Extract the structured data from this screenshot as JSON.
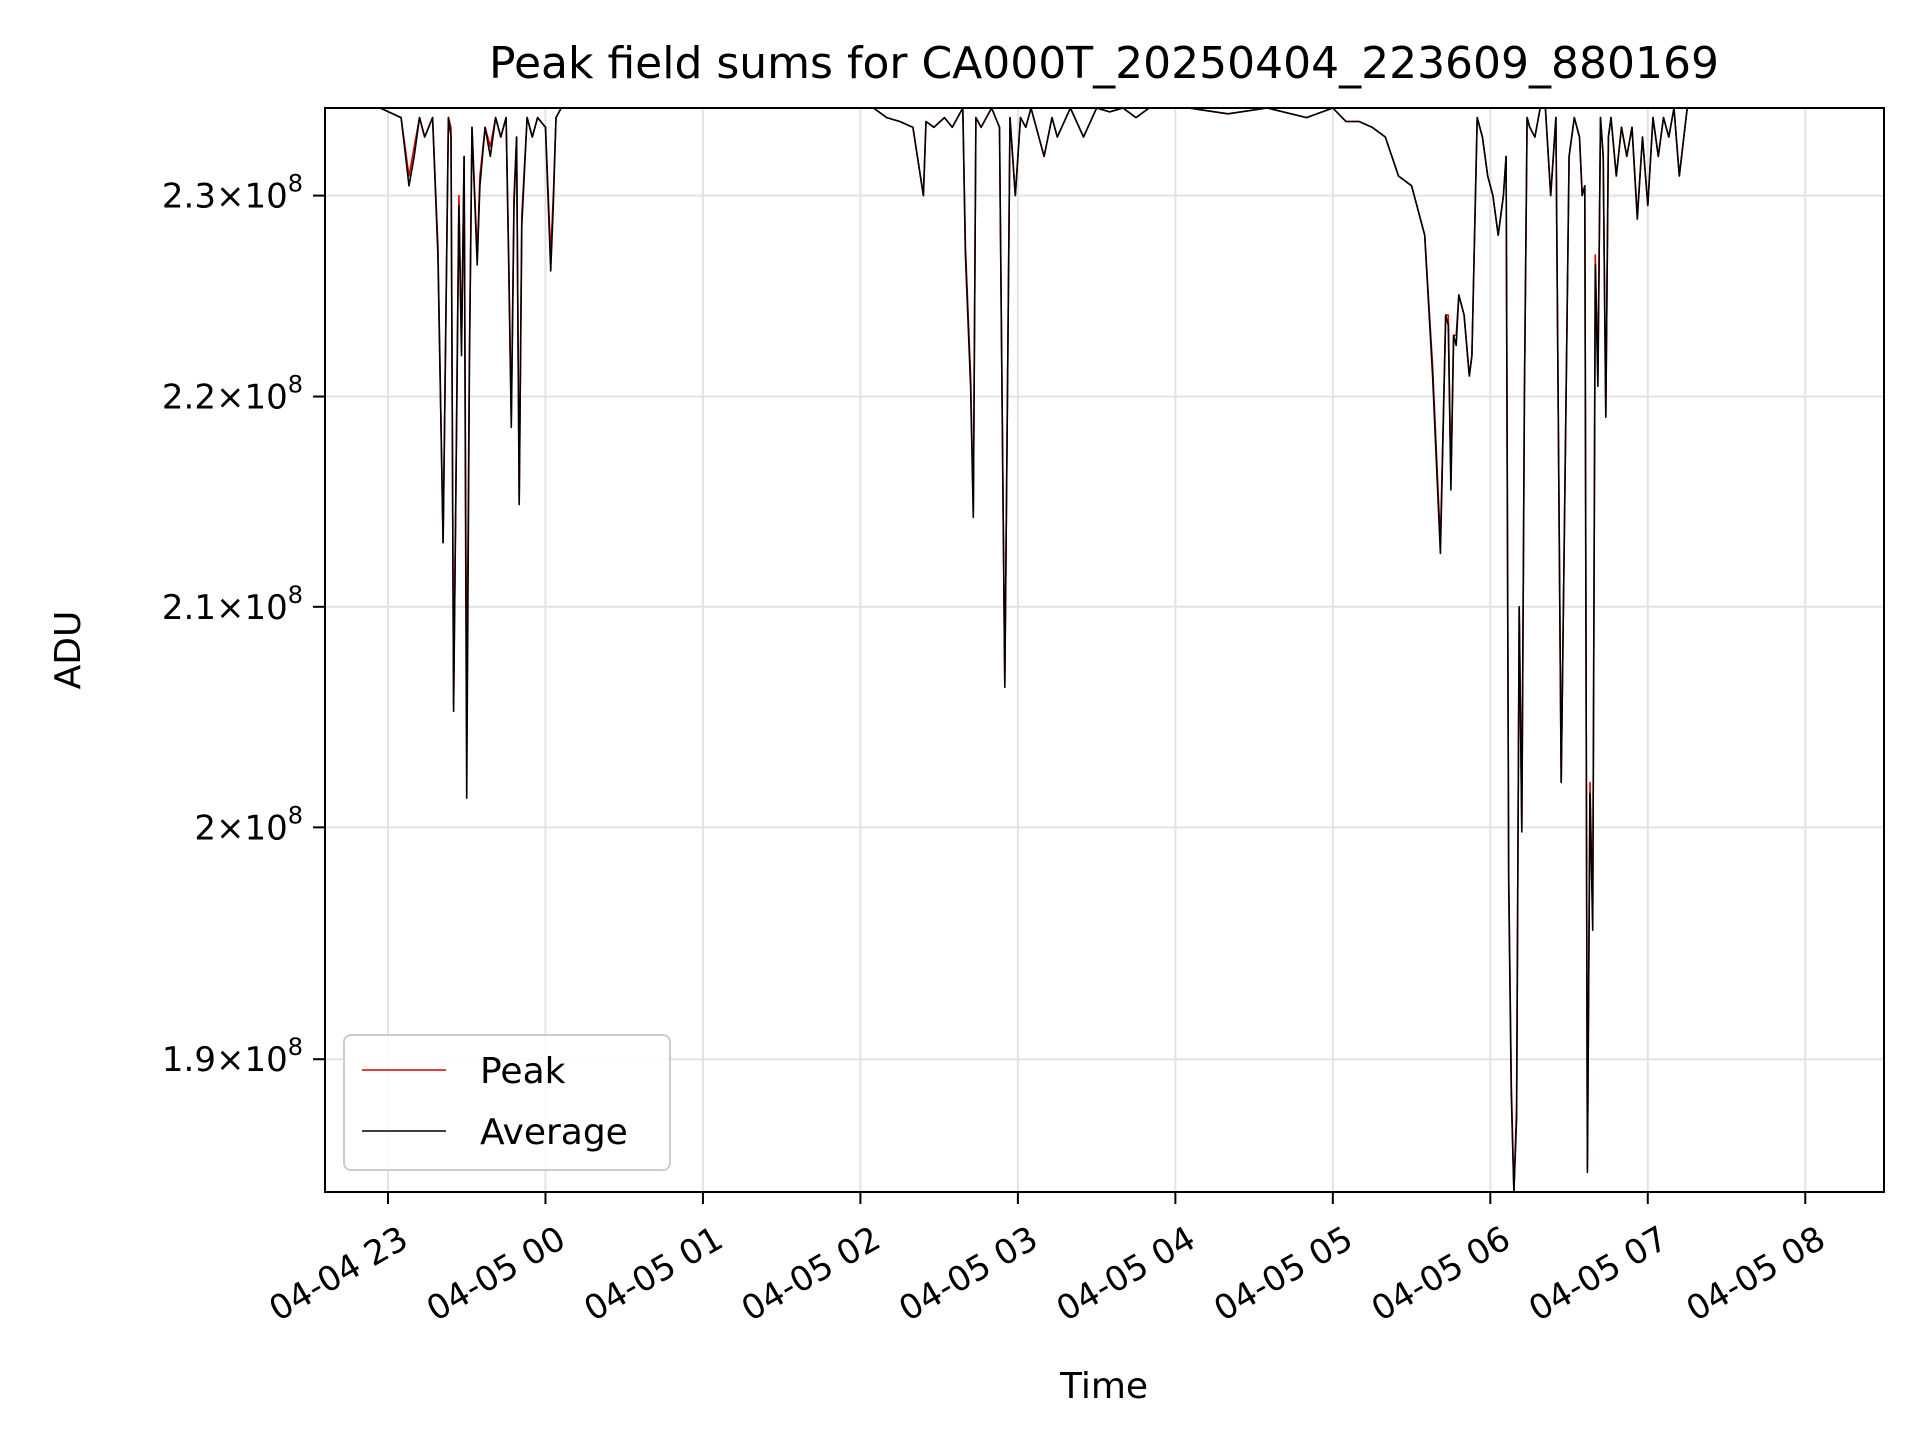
{
  "chart_data": {
    "type": "line",
    "title": "Peak field sums for CA000T_20250404_223609_880169",
    "xlabel": "Time",
    "ylabel": "ADU",
    "y_scale": "log",
    "xlim": [
      "2025-04-04 22:36",
      "2025-04-05 08:30"
    ],
    "ylim": [
      184500000.0,
      234500000.0
    ],
    "x_ticks": [
      {
        "t": "2025-04-04 23:00",
        "label": "04-04 23"
      },
      {
        "t": "2025-04-05 00:00",
        "label": "04-05 00"
      },
      {
        "t": "2025-04-05 01:00",
        "label": "04-05 01"
      },
      {
        "t": "2025-04-05 02:00",
        "label": "04-05 02"
      },
      {
        "t": "2025-04-05 03:00",
        "label": "04-05 03"
      },
      {
        "t": "2025-04-05 04:00",
        "label": "04-05 04"
      },
      {
        "t": "2025-04-05 05:00",
        "label": "04-05 05"
      },
      {
        "t": "2025-04-05 06:00",
        "label": "04-05 06"
      },
      {
        "t": "2025-04-05 07:00",
        "label": "04-05 07"
      },
      {
        "t": "2025-04-05 08:00",
        "label": "04-05 08"
      }
    ],
    "y_ticks": [
      {
        "v": 190000000,
        "mant": "1.9",
        "exp": "8"
      },
      {
        "v": 200000000,
        "mant": "2",
        "exp": "8"
      },
      {
        "v": 210000000,
        "mant": "2.1",
        "exp": "8"
      },
      {
        "v": 220000000,
        "mant": "2.2",
        "exp": "8"
      },
      {
        "v": 230000000,
        "mant": "2.3",
        "exp": "8"
      }
    ],
    "grid": true,
    "legend": {
      "position": "lower-left",
      "entries": [
        "Peak",
        "Average"
      ]
    },
    "series": [
      {
        "name": "Peak",
        "color": "#e00000",
        "t": [
          "2025-04-04 22:45",
          "2025-04-04 22:57",
          "2025-04-04 23:05",
          "2025-04-04 23:08",
          "2025-04-04 23:10",
          "2025-04-04 23:12",
          "2025-04-04 23:14",
          "2025-04-04 23:17",
          "2025-04-04 23:19",
          "2025-04-04 23:21",
          "2025-04-04 23:23",
          "2025-04-04 23:24",
          "2025-04-04 23:25",
          "2025-04-04 23:27",
          "2025-04-04 23:28",
          "2025-04-04 23:29",
          "2025-04-04 23:30",
          "2025-04-04 23:31",
          "2025-04-04 23:32",
          "2025-04-04 23:34",
          "2025-04-04 23:35",
          "2025-04-04 23:37",
          "2025-04-04 23:39",
          "2025-04-04 23:41",
          "2025-04-04 23:43",
          "2025-04-04 23:45",
          "2025-04-04 23:46",
          "2025-04-04 23:47",
          "2025-04-04 23:48",
          "2025-04-04 23:49",
          "2025-04-04 23:50",
          "2025-04-04 23:51",
          "2025-04-04 23:53",
          "2025-04-04 23:55",
          "2025-04-04 23:57",
          "2025-04-05 00:00",
          "2025-04-05 00:02",
          "2025-04-05 00:03",
          "2025-04-05 00:04",
          "2025-04-05 00:06",
          "2025-04-05 00:10",
          "2025-04-05 00:30",
          "2025-04-05 01:30",
          "2025-04-05 02:05",
          "2025-04-05 02:10",
          "2025-04-05 02:15",
          "2025-04-05 02:20",
          "2025-04-05 02:24",
          "2025-04-05 02:25",
          "2025-04-05 02:28",
          "2025-04-05 02:32",
          "2025-04-05 02:35",
          "2025-04-05 02:39",
          "2025-04-05 02:40",
          "2025-04-05 02:42",
          "2025-04-05 02:43",
          "2025-04-05 02:44",
          "2025-04-05 02:46",
          "2025-04-05 02:50",
          "2025-04-05 02:53",
          "2025-04-05 02:55",
          "2025-04-05 02:57",
          "2025-04-05 02:59",
          "2025-04-05 03:01",
          "2025-04-05 03:03",
          "2025-04-05 03:05",
          "2025-04-05 03:10",
          "2025-04-05 03:13",
          "2025-04-05 03:15",
          "2025-04-05 03:20",
          "2025-04-05 03:25",
          "2025-04-05 03:30",
          "2025-04-05 03:35",
          "2025-04-05 03:40",
          "2025-04-05 03:45",
          "2025-04-05 03:50",
          "2025-04-05 03:55",
          "2025-04-05 04:05",
          "2025-04-05 04:20",
          "2025-04-05 04:35",
          "2025-04-05 04:50",
          "2025-04-05 05:00",
          "2025-04-05 05:05",
          "2025-04-05 05:10",
          "2025-04-05 05:15",
          "2025-04-05 05:20",
          "2025-04-05 05:25",
          "2025-04-05 05:30",
          "2025-04-05 05:35",
          "2025-04-05 05:38",
          "2025-04-05 05:41",
          "2025-04-05 05:43",
          "2025-04-05 05:44",
          "2025-04-05 05:45",
          "2025-04-05 05:46",
          "2025-04-05 05:47",
          "2025-04-05 05:48",
          "2025-04-05 05:50",
          "2025-04-05 05:52",
          "2025-04-05 05:53",
          "2025-04-05 05:55",
          "2025-04-05 05:57",
          "2025-04-05 05:59",
          "2025-04-05 06:01",
          "2025-04-05 06:03",
          "2025-04-05 06:05",
          "2025-04-05 06:06",
          "2025-04-05 06:07",
          "2025-04-05 06:08",
          "2025-04-05 06:09",
          "2025-04-05 06:10",
          "2025-04-05 06:11",
          "2025-04-05 06:12",
          "2025-04-05 06:13",
          "2025-04-05 06:14",
          "2025-04-05 06:15",
          "2025-04-05 06:17",
          "2025-04-05 06:19",
          "2025-04-05 06:21",
          "2025-04-05 06:23",
          "2025-04-05 06:25",
          "2025-04-05 06:27",
          "2025-04-05 06:30",
          "2025-04-05 06:32",
          "2025-04-05 06:34",
          "2025-04-05 06:35",
          "2025-04-05 06:36",
          "2025-04-05 06:37",
          "2025-04-05 06:38",
          "2025-04-05 06:39",
          "2025-04-05 06:40",
          "2025-04-05 06:41",
          "2025-04-05 06:42",
          "2025-04-05 06:43",
          "2025-04-05 06:44",
          "2025-04-05 06:45",
          "2025-04-05 06:46",
          "2025-04-05 06:48",
          "2025-04-05 06:50",
          "2025-04-05 06:52",
          "2025-04-05 06:54",
          "2025-04-05 06:56",
          "2025-04-05 06:58",
          "2025-04-05 07:00",
          "2025-04-05 07:02",
          "2025-04-05 07:04",
          "2025-04-05 07:06",
          "2025-04-05 07:08",
          "2025-04-05 07:10",
          "2025-04-05 07:12",
          "2025-04-05 07:15",
          "2025-04-05 07:20",
          "2025-04-05 07:30",
          "2025-04-05 07:40"
        ],
        "v": [
          234500000.0,
          234500000.0,
          234000000.0,
          231000000.0,
          232500000.0,
          234000000.0,
          233000000.0,
          234000000.0,
          227500000.0,
          213000000.0,
          234000000.0,
          233500000.0,
          205500000.0,
          230000000.0,
          222500000.0,
          232000000.0,
          205000000.0,
          222000000.0,
          233500000.0,
          227000000.0,
          231000000.0,
          233500000.0,
          232500000.0,
          234000000.0,
          233000000.0,
          234000000.0,
          227000000.0,
          219000000.0,
          230000000.0,
          233000000.0,
          215000000.0,
          229000000.0,
          234000000.0,
          233000000.0,
          234000000.0,
          233500000.0,
          227000000.0,
          230000000.0,
          234000000.0,
          234500000.0,
          234500000.0,
          234500000.0,
          234500000.0,
          234500000.0,
          234000000.0,
          233800000.0,
          233500000.0,
          230000000.0,
          233800000.0,
          233500000.0,
          234000000.0,
          233500000.0,
          234500000.0,
          227500000.0,
          221000000.0,
          214500000.0,
          234000000.0,
          233500000.0,
          234500000.0,
          233500000.0,
          206500000.0,
          234000000.0,
          230000000.0,
          234000000.0,
          233500000.0,
          234500000.0,
          232000000.0,
          234000000.0,
          233000000.0,
          234500000.0,
          233000000.0,
          234500000.0,
          234300000.0,
          234500000.0,
          234000000.0,
          234500000.0,
          234500000.0,
          234500000.0,
          234200000.0,
          234500000.0,
          234000000.0,
          234500000.0,
          233800000.0,
          233800000.0,
          233500000.0,
          233000000.0,
          231000000.0,
          230500000.0,
          228000000.0,
          221500000.0,
          213000000.0,
          224000000.0,
          224000000.0,
          216000000.0,
          223000000.0,
          223000000.0,
          225000000.0,
          224000000.0,
          221000000.0,
          222000000.0,
          234000000.0,
          233000000.0,
          231000000.0,
          230000000.0,
          228000000.0,
          230000000.0,
          232000000.0,
          198000000.0,
          189000000.0,
          184500000.0,
          188000000.0,
          210000000.0,
          200000000.0,
          220000000.0,
          234000000.0,
          233500000.0,
          233000000.0,
          234500000.0,
          234500000.0,
          230000000.0,
          234000000.0,
          202000000.0,
          232000000.0,
          234000000.0,
          233000000.0,
          230000000.0,
          230500000.0,
          185500000.0,
          202000000.0,
          196000000.0,
          227000000.0,
          221000000.0,
          234000000.0,
          232000000.0,
          219000000.0,
          233000000.0,
          234000000.0,
          231000000.0,
          233500000.0,
          232000000.0,
          233500000.0,
          229000000.0,
          233000000.0,
          229500000.0,
          234000000.0,
          232000000.0,
          234000000.0,
          233000000.0,
          234500000.0,
          231000000.0,
          234500000.0,
          234500000.0,
          234500000.0
        ]
      },
      {
        "name": "Average",
        "color": "#000000",
        "t": [
          "2025-04-04 22:45",
          "2025-04-04 22:57",
          "2025-04-04 23:05",
          "2025-04-04 23:08",
          "2025-04-04 23:10",
          "2025-04-04 23:12",
          "2025-04-04 23:14",
          "2025-04-04 23:17",
          "2025-04-04 23:19",
          "2025-04-04 23:21",
          "2025-04-04 23:23",
          "2025-04-04 23:24",
          "2025-04-04 23:25",
          "2025-04-04 23:27",
          "2025-04-04 23:28",
          "2025-04-04 23:29",
          "2025-04-04 23:30",
          "2025-04-04 23:31",
          "2025-04-04 23:32",
          "2025-04-04 23:34",
          "2025-04-04 23:35",
          "2025-04-04 23:37",
          "2025-04-04 23:39",
          "2025-04-04 23:41",
          "2025-04-04 23:43",
          "2025-04-04 23:45",
          "2025-04-04 23:46",
          "2025-04-04 23:47",
          "2025-04-04 23:48",
          "2025-04-04 23:49",
          "2025-04-04 23:50",
          "2025-04-04 23:51",
          "2025-04-04 23:53",
          "2025-04-04 23:55",
          "2025-04-04 23:57",
          "2025-04-05 00:00",
          "2025-04-05 00:02",
          "2025-04-05 00:03",
          "2025-04-05 00:04",
          "2025-04-05 00:06",
          "2025-04-05 00:10",
          "2025-04-05 00:30",
          "2025-04-05 01:30",
          "2025-04-05 02:05",
          "2025-04-05 02:10",
          "2025-04-05 02:15",
          "2025-04-05 02:20",
          "2025-04-05 02:24",
          "2025-04-05 02:25",
          "2025-04-05 02:28",
          "2025-04-05 02:32",
          "2025-04-05 02:35",
          "2025-04-05 02:39",
          "2025-04-05 02:40",
          "2025-04-05 02:42",
          "2025-04-05 02:43",
          "2025-04-05 02:44",
          "2025-04-05 02:46",
          "2025-04-05 02:50",
          "2025-04-05 02:53",
          "2025-04-05 02:55",
          "2025-04-05 02:57",
          "2025-04-05 02:59",
          "2025-04-05 03:01",
          "2025-04-05 03:03",
          "2025-04-05 03:05",
          "2025-04-05 03:10",
          "2025-04-05 03:13",
          "2025-04-05 03:15",
          "2025-04-05 03:20",
          "2025-04-05 03:25",
          "2025-04-05 03:30",
          "2025-04-05 03:35",
          "2025-04-05 03:40",
          "2025-04-05 03:45",
          "2025-04-05 03:50",
          "2025-04-05 03:55",
          "2025-04-05 04:05",
          "2025-04-05 04:20",
          "2025-04-05 04:35",
          "2025-04-05 04:50",
          "2025-04-05 05:00",
          "2025-04-05 05:05",
          "2025-04-05 05:10",
          "2025-04-05 05:15",
          "2025-04-05 05:20",
          "2025-04-05 05:25",
          "2025-04-05 05:30",
          "2025-04-05 05:35",
          "2025-04-05 05:38",
          "2025-04-05 05:41",
          "2025-04-05 05:43",
          "2025-04-05 05:44",
          "2025-04-05 05:45",
          "2025-04-05 05:46",
          "2025-04-05 05:47",
          "2025-04-05 05:48",
          "2025-04-05 05:50",
          "2025-04-05 05:52",
          "2025-04-05 05:53",
          "2025-04-05 05:55",
          "2025-04-05 05:57",
          "2025-04-05 05:59",
          "2025-04-05 06:01",
          "2025-04-05 06:03",
          "2025-04-05 06:05",
          "2025-04-05 06:06",
          "2025-04-05 06:07",
          "2025-04-05 06:08",
          "2025-04-05 06:09",
          "2025-04-05 06:10",
          "2025-04-05 06:11",
          "2025-04-05 06:12",
          "2025-04-05 06:13",
          "2025-04-05 06:14",
          "2025-04-05 06:15",
          "2025-04-05 06:17",
          "2025-04-05 06:19",
          "2025-04-05 06:21",
          "2025-04-05 06:23",
          "2025-04-05 06:25",
          "2025-04-05 06:27",
          "2025-04-05 06:30",
          "2025-04-05 06:32",
          "2025-04-05 06:34",
          "2025-04-05 06:35",
          "2025-04-05 06:36",
          "2025-04-05 06:37",
          "2025-04-05 06:38",
          "2025-04-05 06:39",
          "2025-04-05 06:40",
          "2025-04-05 06:41",
          "2025-04-05 06:42",
          "2025-04-05 06:43",
          "2025-04-05 06:44",
          "2025-04-05 06:45",
          "2025-04-05 06:46",
          "2025-04-05 06:48",
          "2025-04-05 06:50",
          "2025-04-05 06:52",
          "2025-04-05 06:54",
          "2025-04-05 06:56",
          "2025-04-05 06:58",
          "2025-04-05 07:00",
          "2025-04-05 07:02",
          "2025-04-05 07:04",
          "2025-04-05 07:06",
          "2025-04-05 07:08",
          "2025-04-05 07:10",
          "2025-04-05 07:12",
          "2025-04-05 07:15",
          "2025-04-05 07:20",
          "2025-04-05 07:30",
          "2025-04-05 07:40"
        ],
        "v": [
          234500000.0,
          234500000.0,
          234000000.0,
          230500000.0,
          232000000.0,
          234000000.0,
          233000000.0,
          234000000.0,
          227000000.0,
          213000000.0,
          234000000.0,
          233000000.0,
          205200000.0,
          229500000.0,
          222000000.0,
          232000000.0,
          201300000.0,
          221500000.0,
          233500000.0,
          226500000.0,
          230500000.0,
          233500000.0,
          232000000.0,
          234000000.0,
          233000000.0,
          234000000.0,
          226500000.0,
          218500000.0,
          229500000.0,
          233000000.0,
          214800000.0,
          228500000.0,
          234000000.0,
          233000000.0,
          234000000.0,
          233500000.0,
          226200000.0,
          229500000.0,
          234000000.0,
          234500000.0,
          234500000.0,
          234500000.0,
          234500000.0,
          234500000.0,
          234000000.0,
          233800000.0,
          233500000.0,
          230000000.0,
          233800000.0,
          233500000.0,
          234000000.0,
          233500000.0,
          234500000.0,
          227000000.0,
          220500000.0,
          214200000.0,
          234000000.0,
          233500000.0,
          234500000.0,
          233500000.0,
          206300000.0,
          234000000.0,
          230000000.0,
          234000000.0,
          233500000.0,
          234500000.0,
          232000000.0,
          234000000.0,
          233000000.0,
          234500000.0,
          233000000.0,
          234500000.0,
          234300000.0,
          234500000.0,
          234000000.0,
          234500000.0,
          234500000.0,
          234500000.0,
          234200000.0,
          234500000.0,
          234000000.0,
          234500000.0,
          233800000.0,
          233800000.0,
          233500000.0,
          233000000.0,
          231000000.0,
          230500000.0,
          228000000.0,
          221000000.0,
          212500000.0,
          224000000.0,
          223500000.0,
          215500000.0,
          223000000.0,
          222500000.0,
          225000000.0,
          224000000.0,
          221000000.0,
          222000000.0,
          234000000.0,
          233000000.0,
          231000000.0,
          230000000.0,
          228000000.0,
          230000000.0,
          232000000.0,
          197500000.0,
          188500000.0,
          184500000.0,
          187500000.0,
          210000000.0,
          199800000.0,
          220000000.0,
          234000000.0,
          233500000.0,
          233000000.0,
          234500000.0,
          234500000.0,
          230000000.0,
          234000000.0,
          202000000.0,
          232000000.0,
          234000000.0,
          233000000.0,
          230000000.0,
          230500000.0,
          185300000.0,
          201500000.0,
          195500000.0,
          226500000.0,
          220500000.0,
          234000000.0,
          232000000.0,
          219000000.0,
          233000000.0,
          234000000.0,
          231000000.0,
          233500000.0,
          232000000.0,
          233500000.0,
          228800000.0,
          233000000.0,
          229500000.0,
          234000000.0,
          232000000.0,
          234000000.0,
          233000000.0,
          234500000.0,
          231000000.0,
          234500000.0,
          234500000.0,
          234500000.0
        ]
      }
    ]
  }
}
